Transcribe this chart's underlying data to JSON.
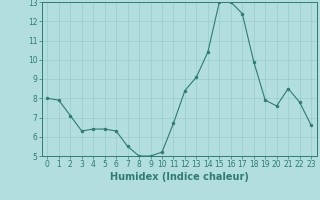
{
  "x": [
    0,
    1,
    2,
    3,
    4,
    5,
    6,
    7,
    8,
    9,
    10,
    11,
    12,
    13,
    14,
    15,
    16,
    17,
    18,
    19,
    20,
    21,
    22,
    23
  ],
  "y": [
    8.0,
    7.9,
    7.1,
    6.3,
    6.4,
    6.4,
    6.3,
    5.5,
    5.0,
    5.0,
    5.2,
    6.7,
    8.4,
    9.1,
    10.4,
    13.0,
    13.0,
    12.4,
    9.9,
    7.9,
    7.6,
    8.5,
    7.8,
    6.6
  ],
  "xlabel": "Humidex (Indice chaleur)",
  "ylim": [
    5,
    13
  ],
  "xlim": [
    -0.5,
    23.5
  ],
  "yticks": [
    5,
    6,
    7,
    8,
    9,
    10,
    11,
    12,
    13
  ],
  "xticks": [
    0,
    1,
    2,
    3,
    4,
    5,
    6,
    7,
    8,
    9,
    10,
    11,
    12,
    13,
    14,
    15,
    16,
    17,
    18,
    19,
    20,
    21,
    22,
    23
  ],
  "line_color": "#2e7d6e",
  "marker_color": "#2e7d6e",
  "bg_color": "#b2dede",
  "tick_label_fontsize": 5.5,
  "xlabel_fontsize": 7.0,
  "xlabel_fontweight": "bold"
}
